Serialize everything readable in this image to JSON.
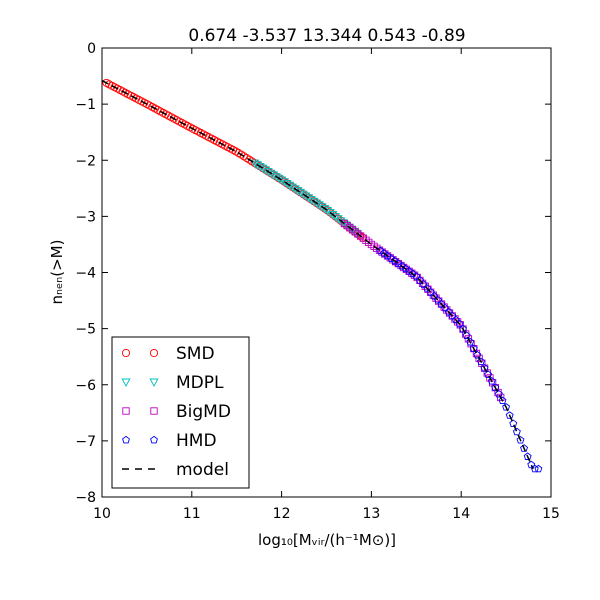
{
  "chart_data": {
    "type": "scatter",
    "title": "0.674 -3.537 13.344 0.543 -0.89",
    "xlabel": "log₁₀[Mᵥᵢᵣ/(h⁻¹M⊙)]",
    "ylabel": "nₙₑₙ(>M)",
    "xlim": [
      10,
      15
    ],
    "ylim": [
      -8,
      0
    ],
    "xticks": [
      "10",
      "11",
      "12",
      "13",
      "14",
      "15"
    ],
    "yticks": [
      "0",
      "−1",
      "−2",
      "−3",
      "−4",
      "−5",
      "−6",
      "−7",
      "−8"
    ],
    "legend_position": "lower-left",
    "model_points": [
      [
        10.0,
        -0.58
      ],
      [
        10.5,
        -1.0
      ],
      [
        11.0,
        -1.43
      ],
      [
        11.5,
        -1.85
      ],
      [
        12.0,
        -2.35
      ],
      [
        12.5,
        -2.88
      ],
      [
        13.0,
        -3.5
      ],
      [
        13.5,
        -4.07
      ],
      [
        14.0,
        -4.95
      ],
      [
        14.5,
        -6.4
      ],
      [
        14.8,
        -7.5
      ]
    ],
    "series": [
      {
        "name": "SMD",
        "marker": "circle",
        "color": "#ff0000",
        "x_range": [
          10.05,
          12.9
        ],
        "step": 0.03
      },
      {
        "name": "MDPL",
        "marker": "triangle-down",
        "color": "#00bfbf",
        "x_range": [
          11.7,
          12.85
        ],
        "step": 0.03
      },
      {
        "name": "BigMD",
        "marker": "square",
        "color": "#bf00bf",
        "x_range": [
          12.7,
          14.45
        ],
        "step": 0.03
      },
      {
        "name": "HMD",
        "marker": "pentagon",
        "color": "#0000ff",
        "x_range": [
          13.1,
          14.86
        ],
        "step": 0.04
      },
      {
        "name": "model",
        "marker": "dashed-line",
        "color": "#000000"
      }
    ]
  }
}
